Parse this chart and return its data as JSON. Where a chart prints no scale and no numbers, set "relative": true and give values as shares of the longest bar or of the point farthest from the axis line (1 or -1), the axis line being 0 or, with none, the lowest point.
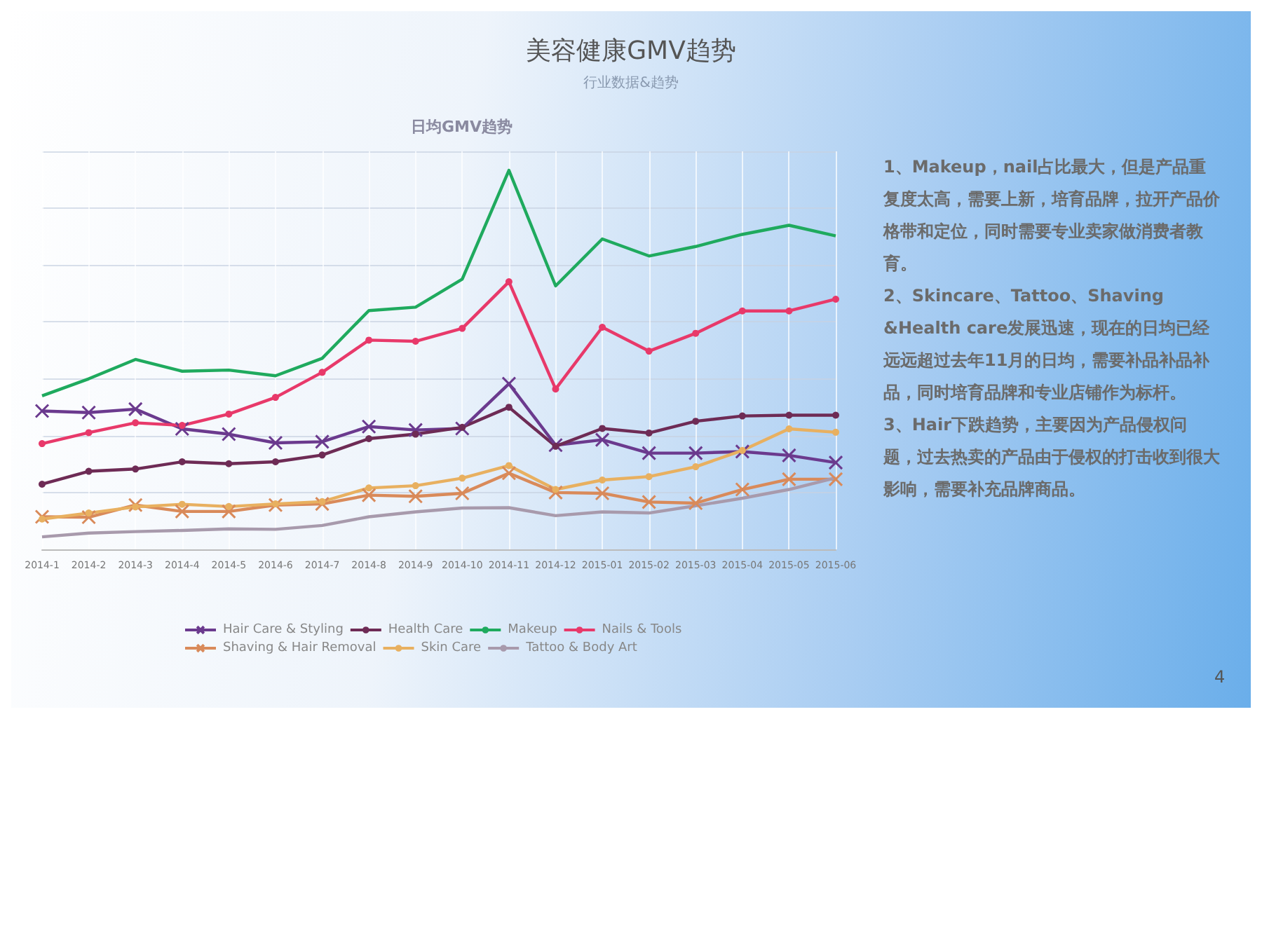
{
  "chart_data": {
    "type": "line",
    "title": "美容健康GMV趋势",
    "subtitle": "行业数据&趋势",
    "annotations": [
      "日均GMV趋势",
      "1、Makeup，nail占比最大，但是产品重复度太高，需要上新，培育品牌，拉开产品价格带和定位，同时需要专业卖家做消费者教育。",
      "2、Skincare、Tattoo、Shaving &Health care发展迅速，现在的日均已经远远超过去年11月的日均，需要补品补品补品，同时培育品牌和专业店铺作为标杆。",
      "3、Hair下跌趋势，主要因为产品侵权问题，过去热卖的产品由于侵权的打击收到很大影响，需要补充品牌商品。",
      "4"
    ],
    "categories": [
      "2014-1",
      "2014-2",
      "2014-3",
      "2014-4",
      "2014-5",
      "2014-6",
      "2014-7",
      "2014-8",
      "2014-9",
      "2014-10",
      "2014-11",
      "2014-12",
      "2015-01",
      "2015-02",
      "2015-03",
      "2015-04",
      "2015-05",
      "2015-06"
    ],
    "relative": true,
    "grid": true,
    "legend": "bottom",
    "series": [
      {
        "name": "Hair Care & Styling",
        "color": "#6b3a8e",
        "marker": "cross",
        "values": [
          0.365,
          0.361,
          0.37,
          0.318,
          0.304,
          0.281,
          0.284,
          0.324,
          0.315,
          0.319,
          0.437,
          0.275,
          0.289,
          0.254,
          0.254,
          0.258,
          0.248,
          0.229
        ]
      },
      {
        "name": "Health Care",
        "color": "#6e2b55",
        "marker": "circle",
        "values": [
          0.172,
          0.206,
          0.212,
          0.231,
          0.226,
          0.231,
          0.249,
          0.292,
          0.304,
          0.322,
          0.375,
          0.272,
          0.319,
          0.307,
          0.338,
          0.352,
          0.354,
          0.354
        ]
      },
      {
        "name": "Makeup",
        "color": "#1faa5e",
        "marker": "none",
        "values": [
          0.405,
          0.45,
          0.501,
          0.47,
          0.473,
          0.458,
          0.504,
          0.63,
          0.639,
          0.713,
          1,
          0.695,
          0.819,
          0.774,
          0.799,
          0.831,
          0.855,
          0.827
        ]
      },
      {
        "name": "Nails & Tools",
        "color": "#e8396a",
        "marker": "circle",
        "values": [
          0.279,
          0.308,
          0.334,
          0.327,
          0.357,
          0.401,
          0.467,
          0.552,
          0.549,
          0.583,
          0.706,
          0.423,
          0.586,
          0.523,
          0.57,
          0.629,
          0.629,
          0.66
        ]
      },
      {
        "name": "Shaving & Hair Removal",
        "color": "#d98a5a",
        "marker": "cross",
        "values": [
          0.086,
          0.085,
          0.117,
          0.1,
          0.1,
          0.117,
          0.12,
          0.143,
          0.14,
          0.148,
          0.201,
          0.15,
          0.148,
          0.125,
          0.122,
          0.158,
          0.185,
          0.185
        ]
      },
      {
        "name": "Skin Care",
        "color": "#e8b060",
        "marker": "circle",
        "values": [
          0.08,
          0.096,
          0.112,
          0.119,
          0.113,
          0.12,
          0.126,
          0.162,
          0.168,
          0.188,
          0.221,
          0.158,
          0.183,
          0.192,
          0.218,
          0.261,
          0.318,
          0.309
        ]
      },
      {
        "name": "Tattoo & Body Art",
        "color": "#a89aac",
        "marker": "none",
        "values": [
          0.033,
          0.043,
          0.047,
          0.05,
          0.054,
          0.053,
          0.063,
          0.086,
          0.099,
          0.109,
          0.11,
          0.089,
          0.099,
          0.096,
          0.115,
          0.135,
          0.158,
          0.189
        ]
      }
    ]
  }
}
